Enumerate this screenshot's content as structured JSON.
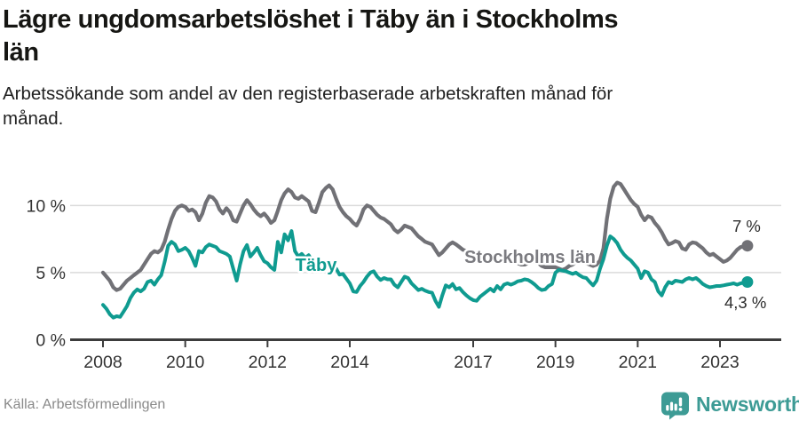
{
  "header": {
    "title_lines": [
      "Lägre ungdomsarbetslöshet i Täby än i Stockholms",
      "län"
    ],
    "subtitle_lines": [
      "Arbetssökande som andel av den registerbaserade arbetskraften månad för",
      "månad."
    ]
  },
  "footer": {
    "source": "Källa: Arbetsförmedlingen",
    "brand": "Newsworthy",
    "brand_color": "#3d9b95"
  },
  "chart_data": {
    "type": "line",
    "title": "Lägre ungdomsarbetslöshet i Täby än i Stockholms län",
    "subtitle": "Arbetssökande som andel av den registerbaserade arbetskraften månad för månad.",
    "x_start_year": 2008,
    "x_step_months": 1,
    "x_end": "2023-09",
    "x_ticks": [
      2008,
      2010,
      2012,
      2014,
      2017,
      2019,
      2021,
      2023
    ],
    "y_ticks": [
      {
        "v": 0,
        "label": "0 %"
      },
      {
        "v": 5,
        "label": "5 %"
      },
      {
        "v": 10,
        "label": "10 %"
      }
    ],
    "ylim": [
      0,
      12.3
    ],
    "grid": true,
    "legend_position": "inline-labels",
    "series": [
      {
        "name": "Stockholms län",
        "color": "#717176",
        "end_label": "7 %",
        "end_value": 7.0,
        "values": [
          5.0,
          4.7,
          4.4,
          3.9,
          3.7,
          3.8,
          4.1,
          4.4,
          4.6,
          4.8,
          5.0,
          5.2,
          5.6,
          6.0,
          6.4,
          6.6,
          6.5,
          6.7,
          7.3,
          8.2,
          9.0,
          9.6,
          9.9,
          10.0,
          9.9,
          9.6,
          9.7,
          9.5,
          8.9,
          9.4,
          10.2,
          10.7,
          10.6,
          10.3,
          9.7,
          9.4,
          9.8,
          9.5,
          8.9,
          8.8,
          9.4,
          10.0,
          10.4,
          10.1,
          9.7,
          9.4,
          9.2,
          9.4,
          9.1,
          8.7,
          8.9,
          9.6,
          10.4,
          10.9,
          11.2,
          11.0,
          10.6,
          10.5,
          10.7,
          10.5,
          10.3,
          9.6,
          9.5,
          10.2,
          11.0,
          11.3,
          11.5,
          11.2,
          10.5,
          9.9,
          9.5,
          9.2,
          9.0,
          8.7,
          8.5,
          9.0,
          9.7,
          10.0,
          9.9,
          9.6,
          9.3,
          9.1,
          9.0,
          8.8,
          8.6,
          8.2,
          8.0,
          8.2,
          8.5,
          8.4,
          8.3,
          8.0,
          7.7,
          7.5,
          7.3,
          7.2,
          7.1,
          6.7,
          6.3,
          6.5,
          6.8,
          7.1,
          7.25,
          7.1,
          6.9,
          6.7,
          6.6,
          6.5,
          6.4,
          6.2,
          6.1,
          6.0,
          6.1,
          6.2,
          6.2,
          6.1,
          5.9,
          5.8,
          5.8,
          5.8,
          5.8,
          5.7,
          5.6,
          5.6,
          5.7,
          5.8,
          5.8,
          5.7,
          5.5,
          5.4,
          5.4,
          5.4,
          5.4,
          5.3,
          5.2,
          5.3,
          5.5,
          5.6,
          5.8,
          5.9,
          5.8,
          5.7,
          5.6,
          5.5,
          5.6,
          5.9,
          6.8,
          9.0,
          10.5,
          11.4,
          11.7,
          11.6,
          11.2,
          10.8,
          10.4,
          10.1,
          9.9,
          9.3,
          8.9,
          9.2,
          9.1,
          8.7,
          8.4,
          8.0,
          7.5,
          7.1,
          7.2,
          7.35,
          7.25,
          6.8,
          6.7,
          7.1,
          7.25,
          7.2,
          7.0,
          6.8,
          6.5,
          6.3,
          6.4,
          6.2,
          6.0,
          5.8,
          5.9,
          6.1,
          6.4,
          6.7,
          6.9,
          6.95,
          7.0
        ]
      },
      {
        "name": "Täby",
        "color": "#0f9b90",
        "end_label": "4,3 %",
        "end_value": 4.3,
        "values": [
          2.6,
          2.3,
          1.9,
          1.65,
          1.75,
          1.7,
          2.1,
          2.5,
          3.1,
          3.5,
          3.75,
          3.6,
          3.8,
          4.3,
          4.4,
          4.1,
          4.5,
          4.8,
          5.8,
          7.0,
          7.3,
          7.1,
          6.6,
          6.7,
          6.85,
          6.6,
          6.1,
          5.5,
          6.6,
          6.5,
          6.9,
          7.1,
          7.0,
          6.9,
          6.6,
          6.5,
          6.4,
          6.2,
          5.3,
          4.4,
          5.6,
          6.6,
          7.05,
          6.2,
          6.5,
          6.85,
          6.3,
          5.85,
          5.7,
          5.4,
          5.2,
          7.3,
          6.5,
          7.85,
          7.4,
          8.1,
          6.6,
          6.2,
          6.4,
          6.1,
          6.3,
          5.9,
          5.7,
          5.85,
          5.6,
          5.55,
          5.5,
          5.4,
          5.3,
          4.85,
          4.9,
          4.55,
          4.2,
          3.6,
          3.55,
          4.0,
          4.3,
          4.7,
          5.0,
          5.1,
          4.7,
          4.45,
          4.6,
          4.5,
          4.5,
          4.1,
          3.9,
          4.3,
          4.7,
          4.6,
          4.2,
          3.95,
          3.7,
          3.8,
          3.65,
          3.55,
          3.5,
          2.9,
          2.45,
          3.3,
          4.05,
          3.9,
          4.15,
          3.75,
          3.85,
          3.55,
          3.3,
          3.1,
          2.95,
          2.9,
          3.2,
          3.4,
          3.6,
          3.8,
          3.6,
          4.0,
          3.75,
          4.1,
          4.2,
          4.1,
          4.2,
          4.35,
          4.4,
          4.5,
          4.45,
          4.3,
          4.1,
          3.85,
          3.7,
          3.75,
          4.0,
          4.15,
          5.0,
          5.2,
          5.15,
          5.1,
          5.0,
          4.9,
          5.0,
          4.8,
          4.65,
          4.6,
          4.3,
          4.05,
          4.4,
          5.3,
          6.0,
          7.0,
          7.7,
          7.5,
          7.2,
          6.7,
          6.35,
          6.1,
          5.9,
          5.6,
          5.3,
          4.6,
          5.1,
          5.0,
          4.5,
          4.3,
          3.6,
          3.3,
          3.9,
          4.3,
          4.2,
          4.4,
          4.35,
          4.3,
          4.5,
          4.6,
          4.5,
          4.6,
          4.4,
          4.15,
          4.0,
          3.9,
          3.95,
          4.0,
          4.0,
          4.05,
          4.1,
          4.15,
          4.2,
          4.1,
          4.2,
          4.25,
          4.3
        ]
      }
    ]
  }
}
